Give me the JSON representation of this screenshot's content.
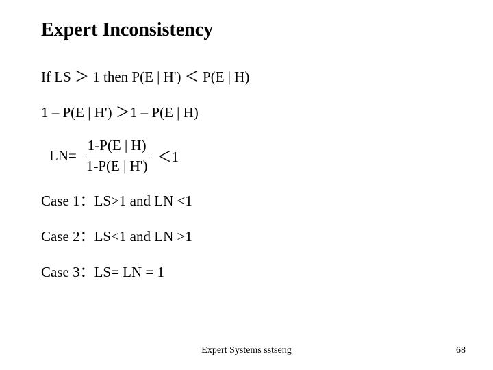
{
  "title": "Expert Inconsistency",
  "line1": "If LS ＞ 1 then P(E | H') ＜ P(E | H)",
  "line2": "1 – P(E | H') ＞1 – P(E | H)",
  "ln_label": "LN=",
  "frac_num": "1-P(E | H)",
  "frac_den": "1-P(E | H')",
  "lt1": "＜1",
  "case1": "Case 1：LS>1 and LN <1",
  "case2": "Case 2：LS<1 and LN >1",
  "case3": "Case 3：LS= LN = 1",
  "footer": "Expert Systems sstseng",
  "page": "68"
}
